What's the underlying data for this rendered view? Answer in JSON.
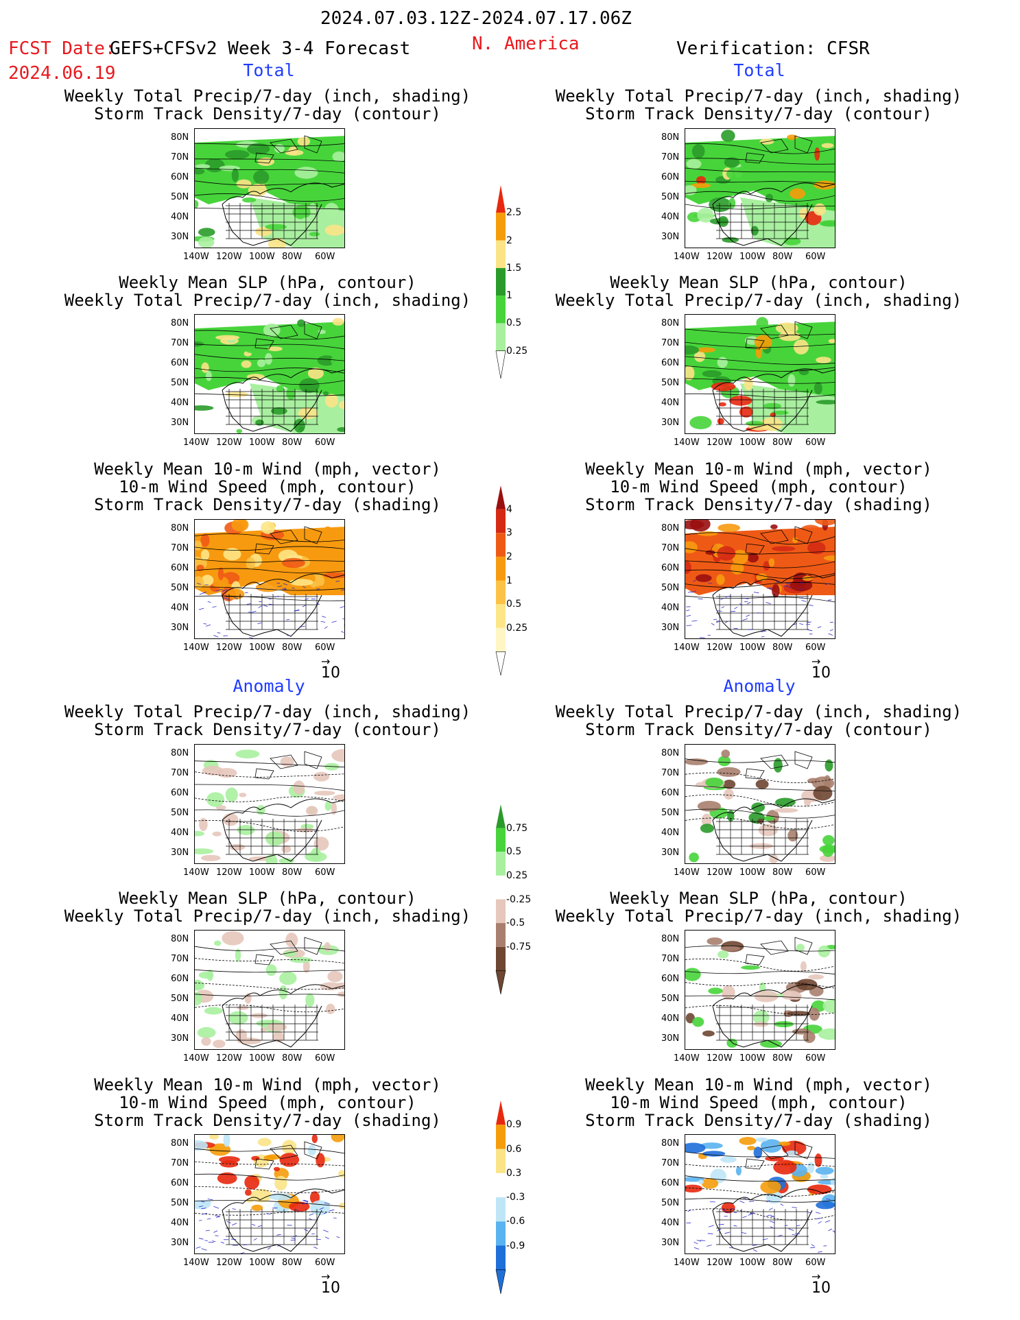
{
  "header": {
    "period": "2024.07.03.12Z-2024.07.17.06Z",
    "fcst_label": "FCST Date:",
    "model": "GEFS+CFSv2 Week 3-4 Forecast",
    "region": "N. America",
    "fcst_date": "2024.06.19",
    "verification": "Verification: CFSR"
  },
  "sections": {
    "total": "Total",
    "anomaly": "Anomaly"
  },
  "panel_titles": {
    "p1": [
      "Weekly Total Precip/7-day (inch, shading)",
      "Storm Track Density/7-day (contour)"
    ],
    "p2": [
      "Weekly Mean SLP (hPa, contour)",
      "Weekly Total Precip/7-day (inch, shading)"
    ],
    "p3": [
      "Weekly Mean 10-m Wind (mph, vector)",
      "10-m Wind Speed (mph, contour)",
      "Storm Track Density/7-day (shading)"
    ]
  },
  "axes": {
    "lat_ticks": [
      "80N",
      "70N",
      "60N",
      "50N",
      "40N",
      "30N"
    ],
    "lon_ticks": [
      "140W",
      "120W",
      "100W",
      "80W",
      "60W"
    ]
  },
  "vector_ref": "10",
  "colorbars": {
    "precip_total": {
      "labels": [
        "2.5",
        "2",
        "1.5",
        "1",
        "0.5",
        "0.25"
      ],
      "colors": [
        "#e8280e",
        "#f59c0a",
        "#fbe387",
        "#2a9b2a",
        "#47d43b",
        "#a8ef9f"
      ]
    },
    "storm_total": {
      "labels": [
        "4",
        "3",
        "2",
        "1",
        "0.5",
        "0.25"
      ],
      "colors": [
        "#9a0f0f",
        "#d42a14",
        "#ee5a16",
        "#f79a10",
        "#fbc246",
        "#fde687",
        "#fff6c4"
      ]
    },
    "precip_anom": {
      "labels": [
        "0.75",
        "0.5",
        "0.25",
        "-0.25",
        "-0.5",
        "-0.75"
      ],
      "colors": [
        "#2a9b2a",
        "#47d43b",
        "#a8ef9f",
        "#ffffff",
        "#e6c7bb",
        "#a87f6e",
        "#6e4632"
      ]
    },
    "storm_anom": {
      "labels": [
        "0.9",
        "0.6",
        "0.3",
        "-0.3",
        "-0.6",
        "-0.9"
      ],
      "colors": [
        "#e8280e",
        "#f59c0a",
        "#fbe387",
        "#ffffff",
        "#bfe6f7",
        "#5ab3f0",
        "#1f6fd9"
      ]
    }
  }
}
